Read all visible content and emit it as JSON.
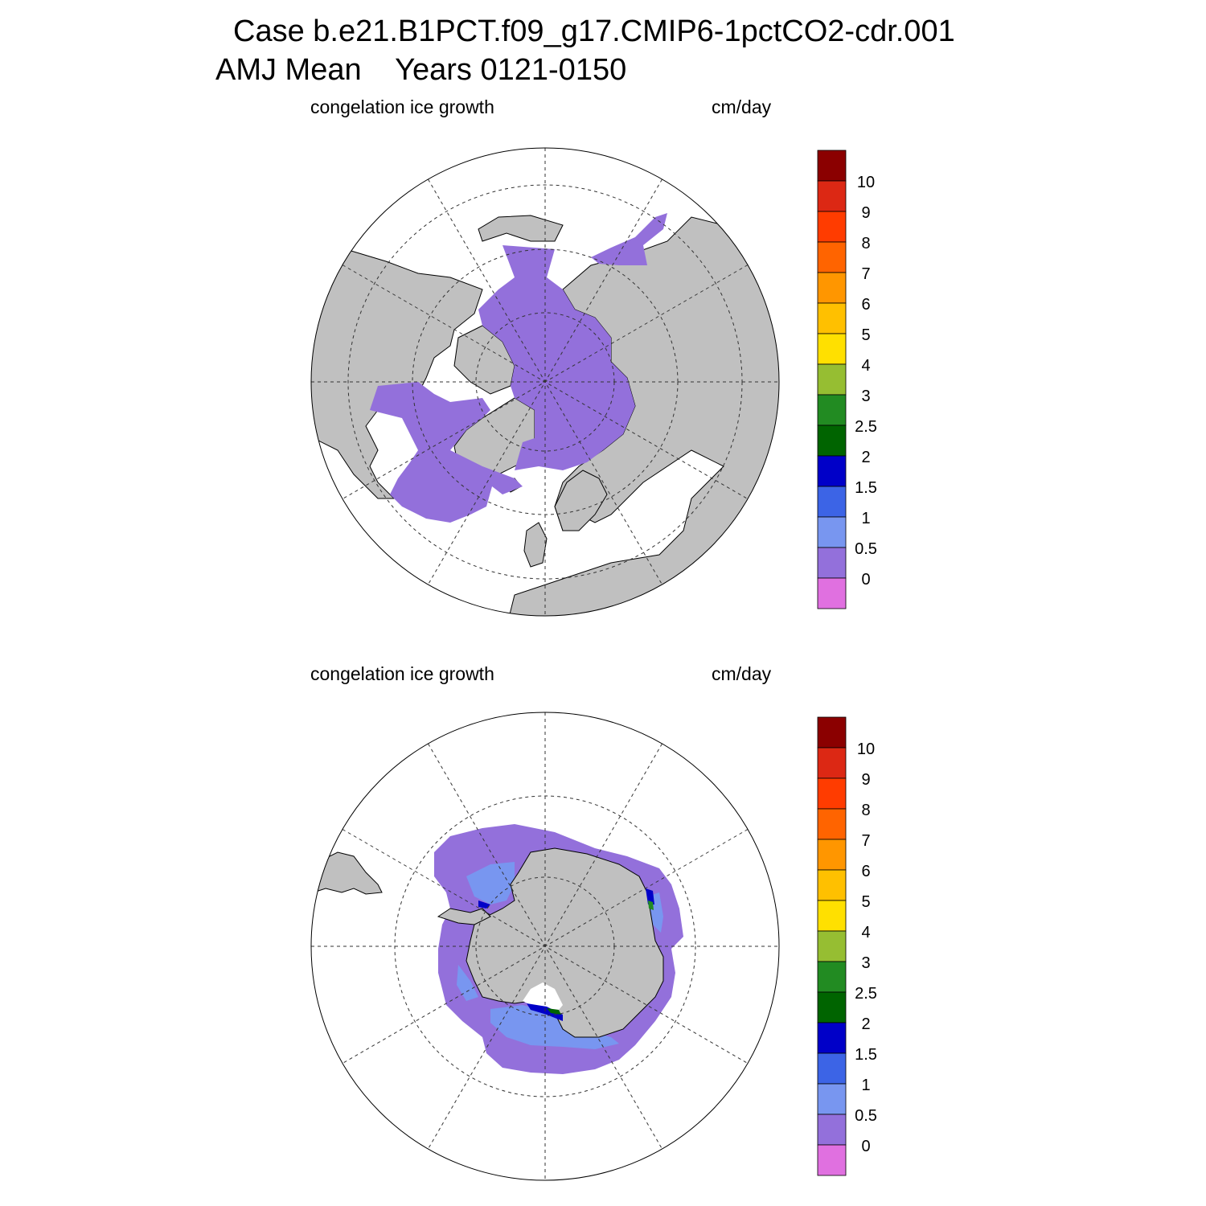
{
  "header": {
    "title_line1": "Case b.e21.B1PCT.f09_g17.CMIP6-1pctCO2-cdr.001",
    "title_line2": "AMJ Mean    Years 0121-0150"
  },
  "panels": [
    {
      "id": "north",
      "hemisphere": "Arctic (north polar stereographic)",
      "variable_label": "congelation ice growth",
      "units_label": "cm/day"
    },
    {
      "id": "south",
      "hemisphere": "Antarctic (south polar stereographic)",
      "variable_label": "congelation ice growth",
      "units_label": "cm/day"
    }
  ],
  "colorbar": {
    "labels": [
      "10",
      "9",
      "8",
      "7",
      "6",
      "5",
      "4",
      "3",
      "2.5",
      "2",
      "1.5",
      "1",
      "0.5",
      "0"
    ],
    "colors_top_to_bottom": [
      "#8b0000",
      "#dc2814",
      "#ff3c00",
      "#ff6400",
      "#ff9600",
      "#ffc000",
      "#ffe000",
      "#96be32",
      "#228b22",
      "#006400",
      "#0000c8",
      "#3c64e6",
      "#7896f0",
      "#9370db",
      "#e070e0"
    ]
  },
  "map_colors": {
    "land": "#c0c0c0",
    "ocean": "#ffffff",
    "ice_0_to_0_5": "#9370db",
    "ice_0_5_to_1": "#7896f0",
    "ice_1_5_to_2": "#0000c8",
    "ice_2_to_2_5": "#006400"
  }
}
